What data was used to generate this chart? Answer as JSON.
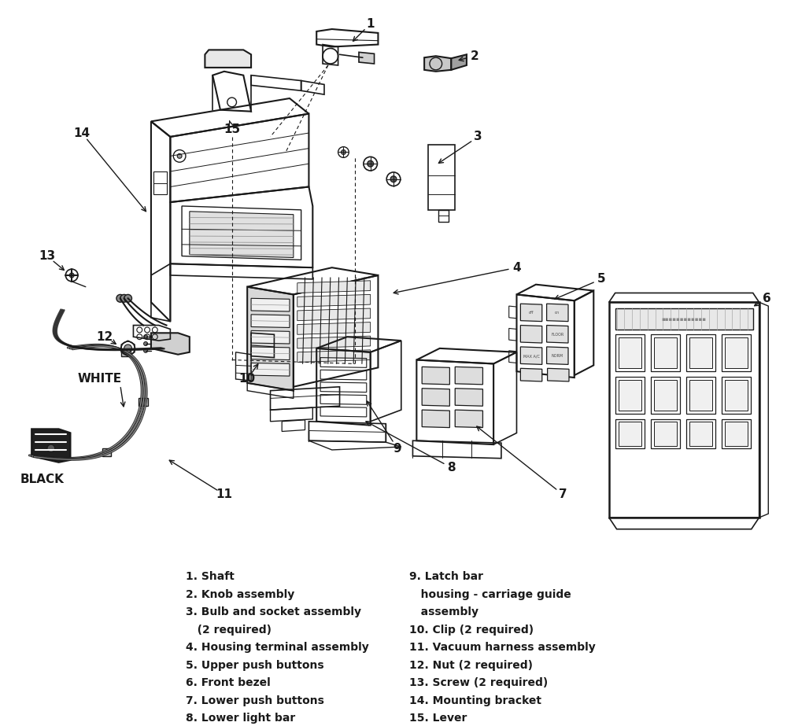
{
  "background_color": "#ffffff",
  "line_color": "#1a1a1a",
  "legend_left": [
    "1. Shaft",
    "2. Knob assembly",
    "3. Bulb and socket assembly",
    "   (2 required)",
    "4. Housing terminal assembly",
    "5. Upper push buttons",
    "6. Front bezel",
    "7. Lower push buttons",
    "8. Lower light bar"
  ],
  "legend_right": [
    "9. Latch bar",
    "   housing - carriage guide",
    "   assembly",
    "10. Clip (2 required)",
    "11. Vacuum harness assembly",
    "12. Nut (2 required)",
    "13. Screw (2 required)",
    "14. Mounting bracket",
    "15. Lever"
  ],
  "figsize": [
    10.0,
    9.23
  ],
  "dpi": 100
}
